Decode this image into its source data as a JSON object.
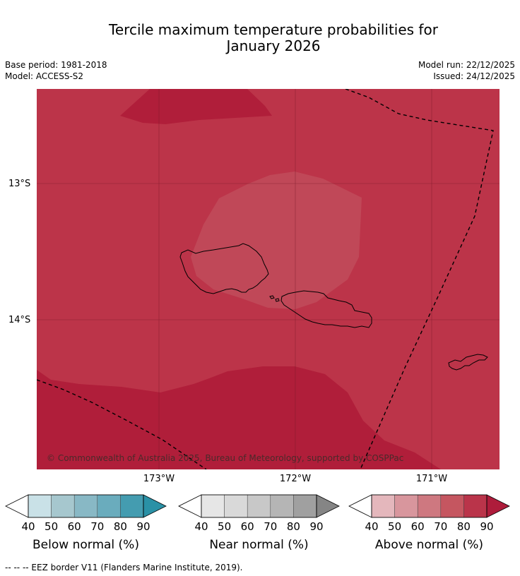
{
  "title_line1": "Tercile maximum temperature probabilities for",
  "title_line2": "January 2026",
  "base_period": "Base period: 1981-2018",
  "model": "Model: ACCESS-S2",
  "model_run": "Model run: 22/12/2025",
  "issued": "Issued: 24/12/2025",
  "copyright": "© Commonwealth of Australia 2025, Bureau of Meteorology, supported by COSPPac",
  "lat_labels": [
    "13°S",
    "14°S"
  ],
  "lon_labels": [
    "173°W",
    "172°W",
    "171°W"
  ],
  "colorbars": [
    {
      "title": "Below normal (%)",
      "ticks": [
        "40",
        "50",
        "60",
        "70",
        "80",
        "90"
      ],
      "colors": [
        "#ffffff",
        "#c9e1e7",
        "#a6c7ce",
        "#88b8c5",
        "#6aacbd",
        "#449cb0",
        "#2a91a6"
      ]
    },
    {
      "title": "Near normal (%)",
      "ticks": [
        "40",
        "50",
        "60",
        "70",
        "80",
        "90"
      ],
      "colors": [
        "#ffffff",
        "#e6e6e6",
        "#d9d9d9",
        "#c8c8c8",
        "#b5b5b5",
        "#a0a0a0",
        "#858585"
      ]
    },
    {
      "title": "Above normal (%)",
      "ticks": [
        "40",
        "50",
        "60",
        "70",
        "80",
        "90"
      ],
      "colors": [
        "#ffffff",
        "#e4b7bc",
        "#d8969d",
        "#ce7880",
        "#c55660",
        "#ba344a",
        "#ae1c3b"
      ]
    }
  ],
  "footnote": "--  --  -- EEZ border V11 (Flanders Marine Institute, 2019).",
  "map_colors": {
    "band_70_80": "#c04858",
    "band_80_90": "#bc3449",
    "band_90": "#b01e3a"
  }
}
